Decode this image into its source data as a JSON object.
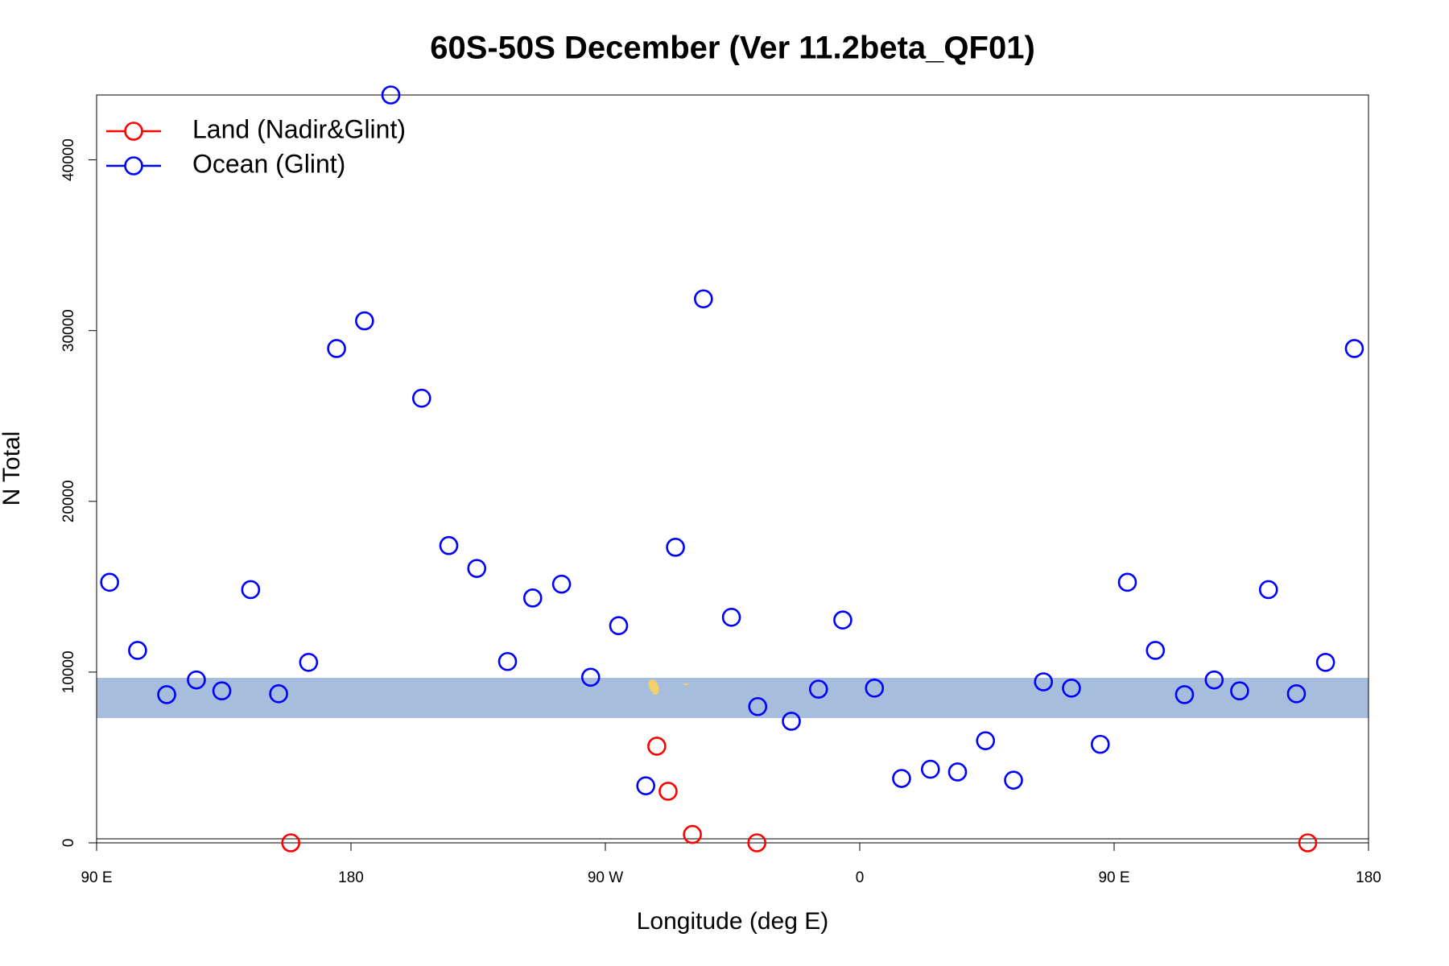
{
  "chart_data": {
    "type": "scatter",
    "title": "60S-50S December (Ver 11.2beta_QF01)",
    "x_label": "Longitude (deg E)",
    "y_label": "N Total",
    "xlim": [
      90,
      540
    ],
    "ylim": [
      0,
      43800
    ],
    "xticks": [
      {
        "value": 90,
        "label": "90 E"
      },
      {
        "value": 180,
        "label": "180"
      },
      {
        "value": 270,
        "label": "90 W"
      },
      {
        "value": 360,
        "label": "0"
      },
      {
        "value": 450,
        "label": "90 E"
      },
      {
        "value": 540,
        "label": "180"
      }
    ],
    "yticks": [
      0,
      10000,
      20000,
      30000,
      40000
    ],
    "legend": "top-left",
    "series": [
      {
        "name": "Land (Nadir&Glint)",
        "color": "#ff0000",
        "x": [
          158.7,
          288.2,
          292.2,
          300.8,
          323.6,
          518.5
        ],
        "values": [
          0,
          5660,
          3020,
          490,
          0,
          0
        ]
      },
      {
        "name": "Ocean (Glint)",
        "color": "#0000ff",
        "x": [
          94.6,
          104.5,
          114.8,
          125.3,
          134.3,
          144.5,
          154.4,
          165.0,
          174.9,
          184.8,
          194.1,
          205.0,
          214.6,
          224.5,
          235.4,
          244.3,
          254.5,
          264.8,
          274.7,
          284.3,
          294.8,
          304.7,
          314.6,
          323.9,
          335.8,
          345.4,
          354.0,
          365.2,
          374.8,
          385.0,
          394.6,
          404.5,
          414.4,
          425.0,
          434.9,
          445.1,
          454.7,
          464.6,
          474.9,
          485.4,
          494.4,
          504.6,
          514.5,
          524.8,
          535.0
        ],
        "values": [
          15260,
          11270,
          8680,
          9540,
          8900,
          14830,
          8730,
          10570,
          28950,
          30570,
          43800,
          26040,
          17410,
          16070,
          10620,
          14340,
          15150,
          9700,
          12720,
          3340,
          17310,
          31860,
          13210,
          7980,
          7120,
          9000,
          13050,
          9060,
          3770,
          4310,
          4150,
          5980,
          3670,
          9430,
          9060,
          5770,
          15260,
          11270,
          8680,
          9540,
          8900,
          14830,
          8730,
          10570,
          28950
        ]
      }
    ]
  }
}
